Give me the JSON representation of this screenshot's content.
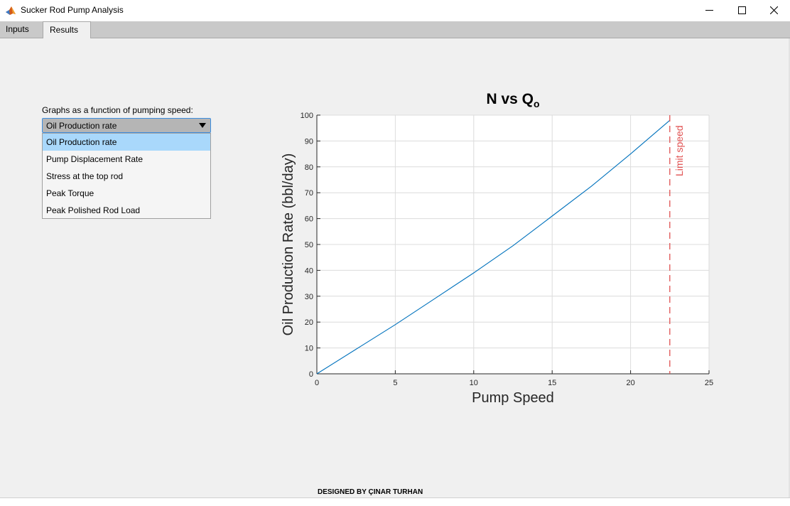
{
  "window": {
    "title": "Sucker Rod Pump Analysis",
    "app_icon": "matlab-icon"
  },
  "tabs": [
    {
      "label": "Inputs",
      "active": false
    },
    {
      "label": "Results",
      "active": true
    }
  ],
  "results": {
    "graph_label": "Graphs as a function of pumping speed:",
    "dropdown": {
      "selected": "Oil Production rate",
      "options": [
        "Oil Production rate",
        "Pump Displacement Rate",
        "Stress at the top rod",
        "Peak Torque",
        "Peak Polished Rod Load"
      ]
    }
  },
  "chart_data": {
    "type": "line",
    "title": "N  vs  Q",
    "title_subscript": "o",
    "xlabel": "Pump Speed",
    "ylabel": "Oil Production Rate (bbl/day)",
    "xlim": [
      0,
      25
    ],
    "ylim": [
      0,
      100
    ],
    "xticks": [
      0,
      5,
      10,
      15,
      20,
      25
    ],
    "yticks": [
      0,
      10,
      20,
      30,
      40,
      50,
      60,
      70,
      80,
      90,
      100
    ],
    "grid": true,
    "series": [
      {
        "color": "#0072bd",
        "x": [
          0,
          2.5,
          5,
          7.5,
          10,
          12.5,
          15,
          17.5,
          20,
          22.5
        ],
        "y": [
          0,
          9.5,
          19,
          29,
          39,
          49.5,
          61,
          72.5,
          85,
          98
        ]
      }
    ],
    "annotations": [
      {
        "type": "vline",
        "x": 22.5,
        "color": "#e05050",
        "style": "dashed",
        "label": "Limit speed"
      }
    ]
  },
  "footer": {
    "credit": "DESIGNED BY ÇINAR TURHAN"
  }
}
